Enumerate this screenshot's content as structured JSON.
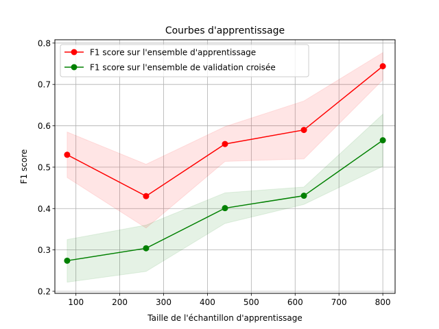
{
  "chart_data": {
    "type": "line",
    "title": "Courbes d'apprentissage",
    "xlabel": "Taille de l'échantillon d'apprentissage",
    "ylabel": "F1 score",
    "xlim": [
      52,
      828
    ],
    "ylim": [
      0.195,
      0.808
    ],
    "x_ticks": [
      100,
      200,
      300,
      400,
      500,
      600,
      700,
      800
    ],
    "y_ticks": [
      0.2,
      0.3,
      0.4,
      0.5,
      0.6,
      0.7,
      0.8
    ],
    "grid": true,
    "legend_position": "upper-left",
    "x": [
      80,
      260,
      440,
      620,
      800
    ],
    "series": [
      {
        "name": "F1 score sur l'ensemble d'apprentissage",
        "color": "#ff0000",
        "band_color": "#ff0000",
        "values": [
          0.53,
          0.43,
          0.556,
          0.59,
          0.744
        ],
        "upper": [
          0.585,
          0.507,
          0.598,
          0.66,
          0.777
        ],
        "lower": [
          0.475,
          0.353,
          0.514,
          0.52,
          0.711
        ]
      },
      {
        "name": "F1 score sur l'ensemble de validation croisée",
        "color": "#008000",
        "band_color": "#008000",
        "values": [
          0.274,
          0.304,
          0.401,
          0.431,
          0.565
        ],
        "upper": [
          0.325,
          0.36,
          0.438,
          0.452,
          0.628
        ],
        "lower": [
          0.222,
          0.248,
          0.364,
          0.41,
          0.502
        ]
      }
    ]
  }
}
